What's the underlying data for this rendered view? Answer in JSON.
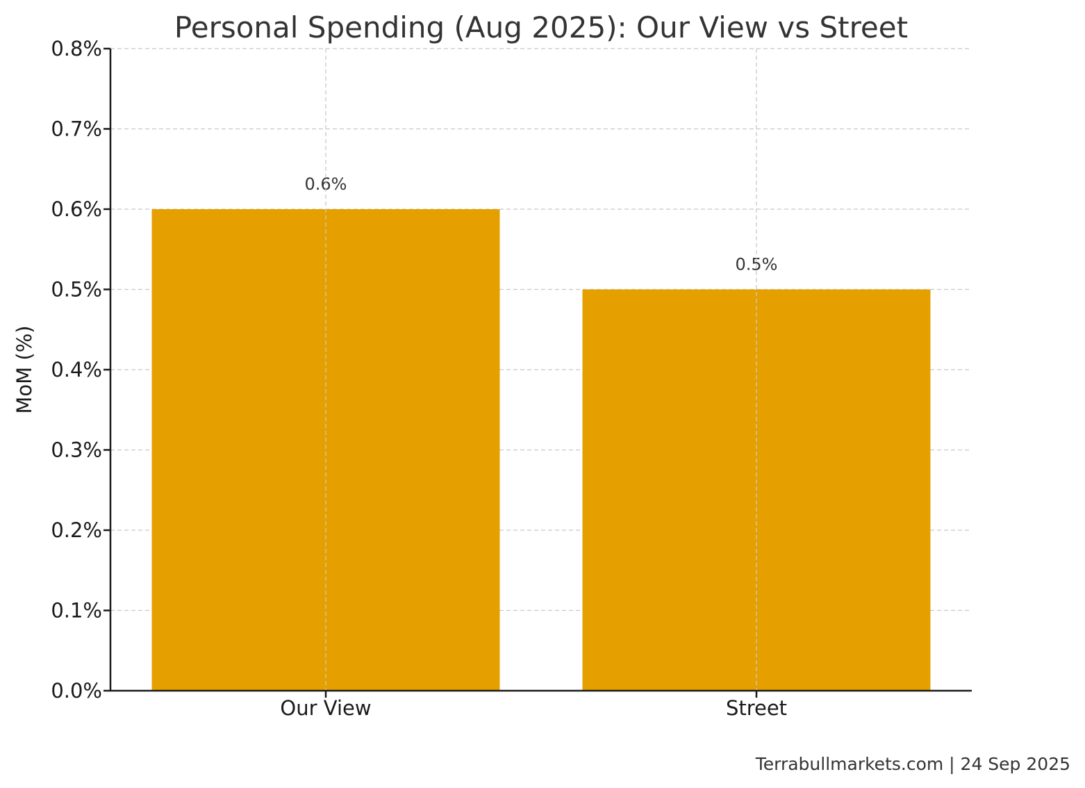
{
  "chart_data": {
    "type": "bar",
    "title": "Personal Spending (Aug 2025): Our View vs Street",
    "xlabel": "",
    "ylabel": "MoM (%)",
    "categories": [
      "Our View",
      "Street"
    ],
    "values": [
      0.6,
      0.5
    ],
    "value_labels": [
      "0.6%",
      "0.5%"
    ],
    "ylim": [
      0.0,
      0.8
    ],
    "yticks": [
      0.0,
      0.1,
      0.2,
      0.3,
      0.4,
      0.5,
      0.6,
      0.7,
      0.8
    ],
    "ytick_labels": [
      "0.0%",
      "0.1%",
      "0.2%",
      "0.3%",
      "0.4%",
      "0.5%",
      "0.6%",
      "0.7%",
      "0.8%"
    ],
    "grid": true,
    "bar_color": "#E5A000",
    "legend": null
  },
  "footer": "Terrabullmarkets.com | 24 Sep 2025"
}
